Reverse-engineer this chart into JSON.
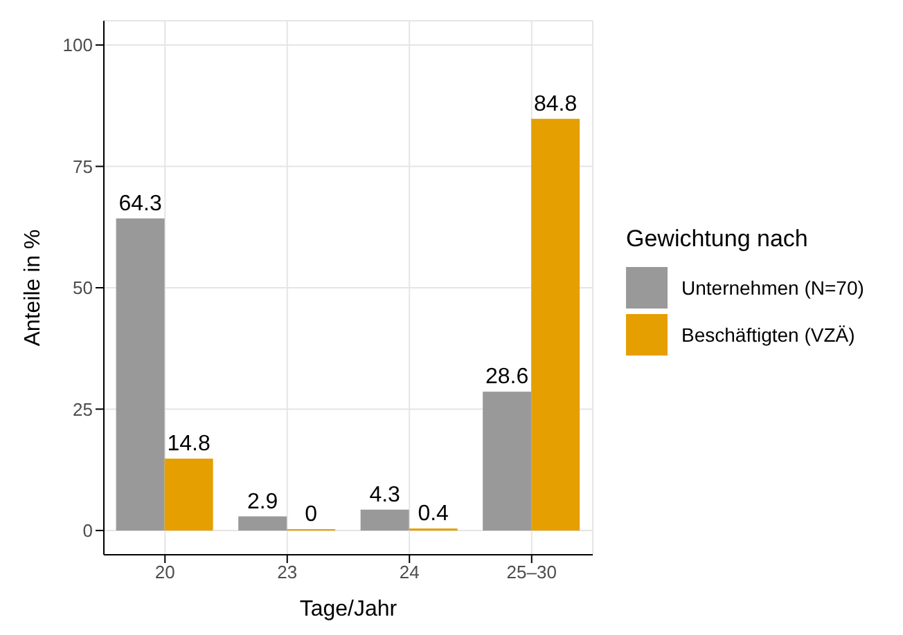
{
  "chart_data": {
    "type": "bar",
    "xlabel": "Tage/Jahr",
    "ylabel": "Anteile in %",
    "legend_title": "Gewichtung nach",
    "categories": [
      "20",
      "23",
      "24",
      "25–30"
    ],
    "series": [
      {
        "name": "Unternehmen (N=70)",
        "color": "#999999",
        "values": [
          64.3,
          2.9,
          4.3,
          28.6
        ]
      },
      {
        "name": "Beschäftigten (VZÄ)",
        "color": "#e69f00",
        "values": [
          14.8,
          0,
          0.4,
          84.8
        ]
      }
    ],
    "ylim": [
      -5,
      105
    ],
    "yticks": [
      0,
      25,
      50,
      75,
      100
    ],
    "grid": true,
    "legend": "right",
    "data_labels": true
  }
}
